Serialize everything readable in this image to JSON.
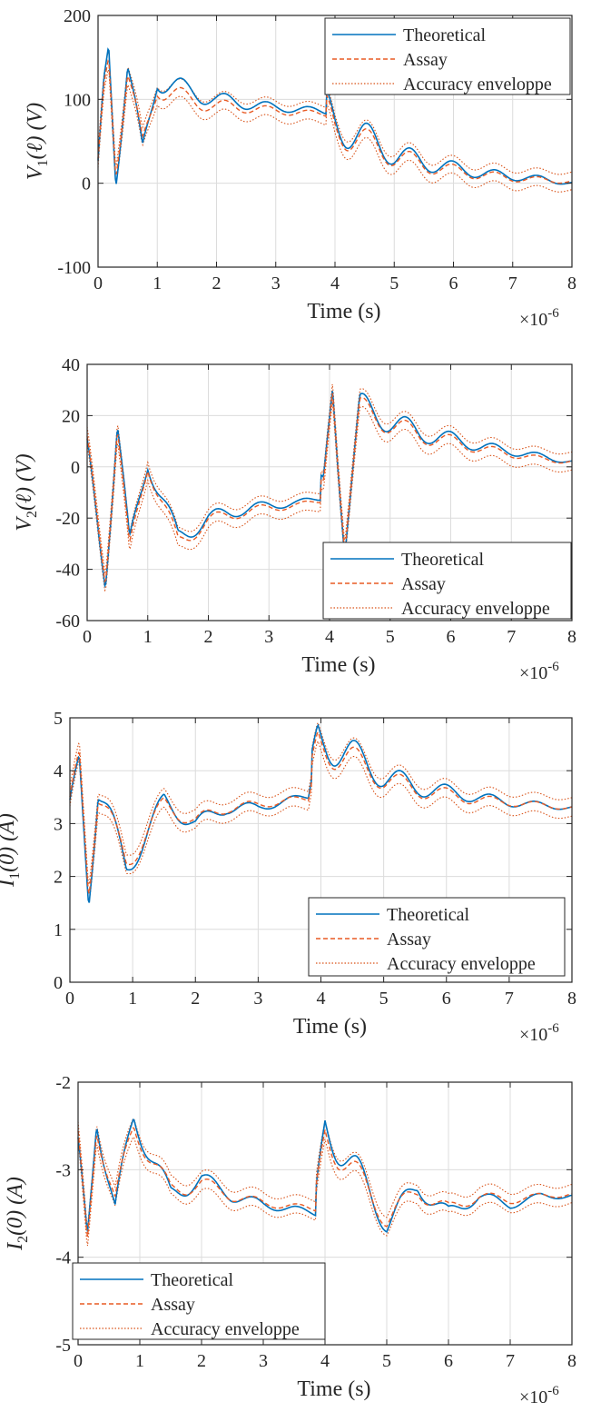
{
  "colors": {
    "theoretical": "#0072BD",
    "assay": "#E85A24",
    "envelope": "#D95319",
    "grid": "#dcdcdc",
    "axis": "#262626"
  },
  "legend_entries": [
    "Theoretical",
    "Assay",
    "Accuracy enveloppe"
  ],
  "chart_data": [
    {
      "type": "line",
      "id": "v1",
      "ylabel": "V1(ℓ) (V)",
      "ylabel_parts": {
        "var": "V",
        "sub": "1",
        "arg": "(ℓ) (V)"
      },
      "xlabel": "Time (s)",
      "x_multiplier": "×10^-6",
      "xlim": [
        0,
        8
      ],
      "ylim": [
        -100,
        200
      ],
      "xticks": [
        "0",
        "1",
        "2",
        "3",
        "4",
        "5",
        "6",
        "7",
        "8"
      ],
      "yticks": [
        "-100",
        "0",
        "100",
        "200"
      ],
      "ytick_values": [
        -100,
        0,
        100,
        200
      ],
      "grid": true,
      "legend_position": "top-right",
      "series": [
        {
          "name": "Theoretical",
          "style": "solid",
          "x": [
            0,
            0.1,
            0.18,
            0.3,
            0.5,
            0.75,
            1.0,
            1.5,
            2.0,
            2.5,
            3.0,
            3.5,
            3.85,
            4.0,
            4.5,
            5.0,
            5.5,
            6.0,
            6.5,
            7.0,
            7.5,
            8.0
          ],
          "values": [
            0,
            110,
            165,
            15,
            145,
            30,
            125,
            110,
            100,
            95,
            90,
            88,
            85,
            70,
            55,
            35,
            25,
            18,
            12,
            8,
            5,
            0
          ]
        },
        {
          "name": "Assay",
          "style": "dashed",
          "x": [
            0,
            0.1,
            0.18,
            0.3,
            0.5,
            0.75,
            1.0,
            1.5,
            2.0,
            2.5,
            3.0,
            3.5,
            3.85,
            4.0,
            4.5,
            5.0,
            5.5,
            6.0,
            6.5,
            7.0,
            7.5,
            8.0
          ],
          "values": [
            5,
            105,
            150,
            25,
            135,
            40,
            115,
            100,
            92,
            90,
            86,
            84,
            82,
            65,
            50,
            32,
            22,
            15,
            10,
            6,
            4,
            2
          ]
        }
      ]
    },
    {
      "type": "line",
      "id": "v2",
      "ylabel": "V2(ℓ) (V)",
      "ylabel_parts": {
        "var": "V",
        "sub": "2",
        "arg": "(ℓ) (V)"
      },
      "xlabel": "Time (s)",
      "x_multiplier": "×10^-6",
      "xlim": [
        0,
        8
      ],
      "ylim": [
        -60,
        40
      ],
      "xticks": [
        "0",
        "1",
        "2",
        "3",
        "4",
        "5",
        "6",
        "7",
        "8"
      ],
      "yticks": [
        "-60",
        "-40",
        "-20",
        "0",
        "20",
        "40"
      ],
      "ytick_values": [
        -60,
        -40,
        -20,
        0,
        20,
        40
      ],
      "grid": true,
      "legend_position": "bottom-right",
      "series": [
        {
          "name": "Theoretical",
          "style": "solid",
          "x": [
            0,
            0.3,
            0.5,
            0.7,
            1.0,
            1.5,
            2.0,
            2.5,
            3.0,
            3.5,
            3.9,
            4.05,
            4.25,
            4.5,
            5.0,
            5.5,
            6.0,
            6.5,
            7.0,
            7.5,
            8.0
          ],
          "values": [
            2,
            -41,
            18,
            -33,
            3,
            -28,
            -20,
            -17,
            -15,
            -14,
            -12,
            32,
            -28,
            23,
            18,
            13,
            11,
            8,
            6,
            4,
            2
          ]
        },
        {
          "name": "Assay",
          "style": "dashed",
          "x": [
            0,
            0.3,
            0.5,
            0.7,
            1.0,
            1.5,
            2.0,
            2.5,
            3.0,
            3.5,
            3.9,
            4.05,
            4.25,
            4.5,
            5.0,
            5.5,
            6.0,
            6.5,
            7.0,
            7.5,
            8.0
          ],
          "values": [
            4,
            -40,
            16,
            -35,
            2,
            -30,
            -21,
            -18,
            -16,
            -15,
            -13,
            31,
            -27,
            22,
            17,
            12,
            10,
            7,
            5,
            3,
            2
          ]
        }
      ]
    },
    {
      "type": "line",
      "id": "i1",
      "ylabel": "I1(0) (A)",
      "ylabel_parts": {
        "var": "I",
        "sub": "1",
        "arg": "(0) (A)"
      },
      "xlabel": "Time (s)",
      "x_multiplier": "×10^-6",
      "xlim": [
        0,
        8
      ],
      "ylim": [
        0,
        5
      ],
      "xticks": [
        "0",
        "1",
        "2",
        "3",
        "4",
        "5",
        "6",
        "7",
        "8"
      ],
      "yticks": [
        "0",
        "1",
        "2",
        "3",
        "4",
        "5"
      ],
      "ytick_values": [
        0,
        1,
        2,
        3,
        4,
        5
      ],
      "grid": true,
      "legend_position": "bottom-right",
      "series": [
        {
          "name": "Theoretical",
          "style": "solid",
          "x": [
            0,
            0.15,
            0.3,
            0.45,
            0.9,
            1.5,
            2.0,
            2.5,
            3.0,
            3.5,
            3.8,
            3.95,
            4.5,
            5.0,
            5.5,
            6.0,
            6.5,
            7.0,
            7.5,
            8.0
          ],
          "values": [
            3.0,
            4.2,
            1.75,
            3.7,
            2.15,
            3.4,
            3.0,
            3.3,
            3.3,
            3.45,
            3.5,
            4.6,
            4.3,
            3.9,
            3.7,
            3.6,
            3.5,
            3.4,
            3.35,
            3.3
          ]
        },
        {
          "name": "Assay",
          "style": "dashed",
          "x": [
            0,
            0.15,
            0.3,
            0.45,
            0.9,
            1.5,
            2.0,
            2.5,
            3.0,
            3.5,
            3.8,
            3.95,
            4.5,
            5.0,
            5.5,
            6.0,
            6.5,
            7.0,
            7.5,
            8.0
          ],
          "values": [
            3.1,
            4.3,
            1.9,
            3.6,
            2.25,
            3.35,
            3.05,
            3.3,
            3.35,
            3.45,
            3.45,
            4.5,
            4.2,
            3.85,
            3.65,
            3.55,
            3.45,
            3.4,
            3.35,
            3.3
          ]
        }
      ]
    },
    {
      "type": "line",
      "id": "i2",
      "ylabel": "I2(0) (A)",
      "ylabel_parts": {
        "var": "I",
        "sub": "2",
        "arg": "(0) (A)"
      },
      "xlabel": "Time (s)",
      "x_multiplier": "×10^-6",
      "xlim": [
        0,
        8
      ],
      "ylim": [
        -5,
        -2
      ],
      "xticks": [
        "0",
        "1",
        "2",
        "3",
        "4",
        "5",
        "6",
        "7",
        "8"
      ],
      "yticks": [
        "-5",
        "-4",
        "-3",
        "-2"
      ],
      "ytick_values": [
        -5,
        -4,
        -3,
        -2
      ],
      "grid": true,
      "legend_position": "bottom-left",
      "series": [
        {
          "name": "Theoretical",
          "style": "solid",
          "x": [
            0,
            0.15,
            0.3,
            0.6,
            0.9,
            1.5,
            2.0,
            2.5,
            3.0,
            3.5,
            3.85,
            4.0,
            4.5,
            5.0,
            5.5,
            6.0,
            6.5,
            7.0,
            7.5,
            8.0
          ],
          "values": [
            -2.9,
            -3.8,
            -2.3,
            -3.5,
            -2.4,
            -3.3,
            -3.1,
            -3.3,
            -3.4,
            -3.45,
            -3.5,
            -2.5,
            -3.0,
            -3.6,
            -3.2,
            -3.5,
            -3.3,
            -3.4,
            -3.3,
            -3.3
          ]
        },
        {
          "name": "Assay",
          "style": "dashed",
          "x": [
            0,
            0.15,
            0.3,
            0.6,
            0.9,
            1.5,
            2.0,
            2.5,
            3.0,
            3.5,
            3.85,
            4.0,
            4.5,
            5.0,
            5.5,
            6.0,
            6.5,
            7.0,
            7.5,
            8.0
          ],
          "values": [
            -2.8,
            -3.85,
            -2.4,
            -3.4,
            -2.5,
            -3.25,
            -3.15,
            -3.3,
            -3.38,
            -3.42,
            -3.45,
            -2.6,
            -3.05,
            -3.55,
            -3.25,
            -3.45,
            -3.3,
            -3.35,
            -3.3,
            -3.28
          ]
        }
      ]
    }
  ]
}
